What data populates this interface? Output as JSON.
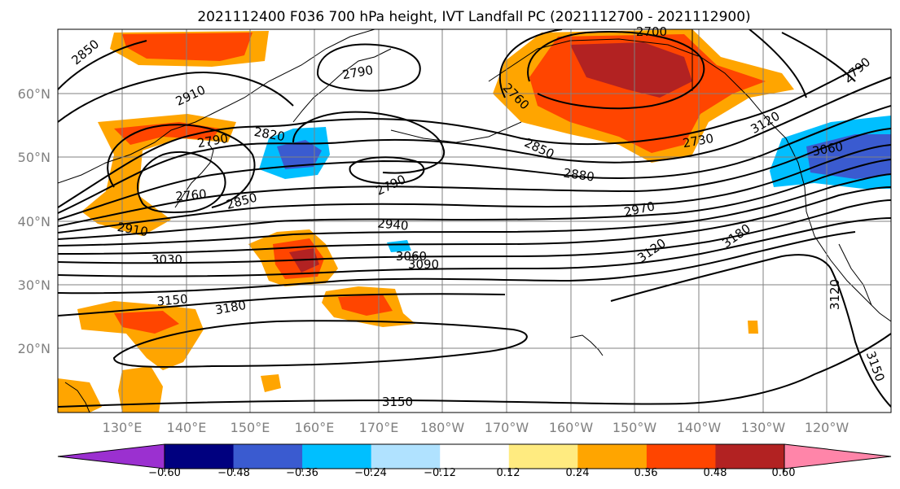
{
  "title": "2021112400 F036 700 hPa height, IVT Landfall PC (2021112700 - 2021112900)",
  "map": {
    "lat_labels": [
      "60°N",
      "50°N",
      "40°N",
      "30°N",
      "20°N"
    ],
    "lon_labels": [
      "130°E",
      "140°E",
      "150°E",
      "160°E",
      "170°E",
      "180°W",
      "170°W",
      "160°W",
      "150°W",
      "140°W",
      "130°W",
      "120°W"
    ],
    "grid": true
  },
  "contour_labels": [
    "2850",
    "2910",
    "2790",
    "2820",
    "2760",
    "2850",
    "2910",
    "3030",
    "2790",
    "2700",
    "2760",
    "2850",
    "2730",
    "3120",
    "2790",
    "3060",
    "2880",
    "2790",
    "2970",
    "2940",
    "3060",
    "3090",
    "3120",
    "3180",
    "3150",
    "3180",
    "3120",
    "3150",
    "3150"
  ],
  "colorbar": {
    "ticks": [
      "−0.60",
      "−0.48",
      "−0.36",
      "−0.24",
      "−0.12",
      "0.12",
      "0.24",
      "0.36",
      "0.48",
      "0.60"
    ],
    "colors": [
      "#9b30d0",
      "#00007f",
      "#3a5bd0",
      "#00bfff",
      "#b0e2ff",
      "#ffffff",
      "#ffeb80",
      "#ffa500",
      "#ff4500",
      "#b22222",
      "#ff85a9"
    ]
  }
}
